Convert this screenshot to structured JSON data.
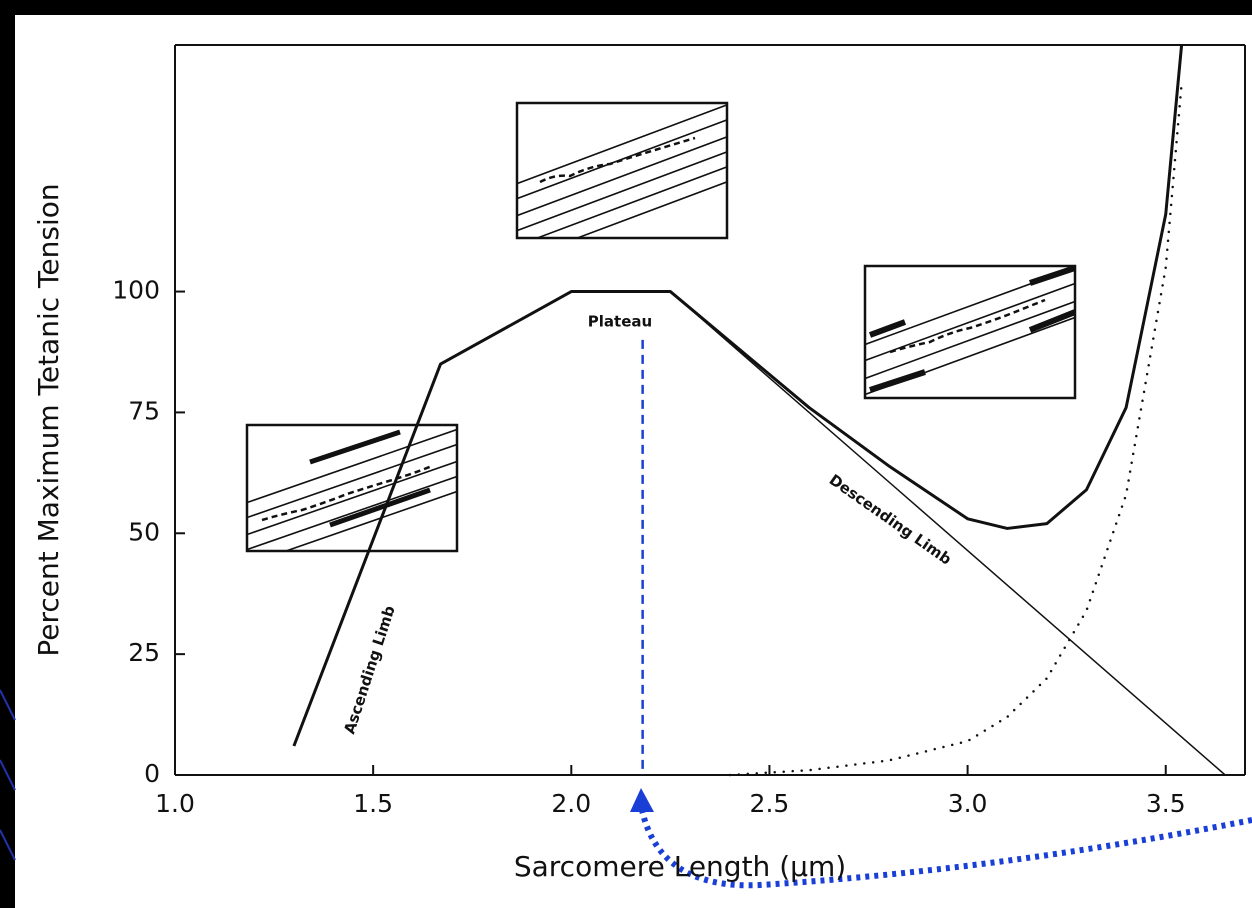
{
  "chart_data": {
    "type": "line",
    "xlabel": "Sarcomere Length (μm)",
    "ylabel": "Percent Maximum Tetanic Tension",
    "xlim": [
      1.0,
      3.7
    ],
    "ylim": [
      0,
      151
    ],
    "xticks": [
      {
        "value": 1,
        "label": "1.0"
      },
      1.5,
      {
        "value": 2,
        "label": "2.0"
      },
      2.5,
      {
        "value": 3,
        "label": "3.0"
      },
      3.5
    ],
    "yticks": [
      0,
      25,
      50,
      75,
      100
    ],
    "series": [
      {
        "color": "#111111",
        "width": 3,
        "style": "solid",
        "x": [
          1.3,
          1.67,
          2.0,
          2.25,
          2.6,
          2.8,
          3.0,
          3.1,
          3.2,
          3.3,
          3.4,
          3.5,
          3.54
        ],
        "values": [
          6,
          85,
          100,
          100,
          76,
          64,
          53,
          51,
          52,
          59,
          76,
          116,
          151
        ]
      },
      {
        "color": "#111111",
        "width": 1.5,
        "style": "solid",
        "x": [
          2.25,
          3.65
        ],
        "values": [
          100,
          0
        ]
      },
      {
        "color": "#111111",
        "width": 2.5,
        "style": "dotted",
        "x": [
          2.4,
          2.6,
          2.8,
          3.0,
          3.1,
          3.2,
          3.3,
          3.4,
          3.5,
          3.54
        ],
        "values": [
          0,
          1,
          3,
          7,
          12,
          20,
          34,
          58,
          105,
          143
        ]
      }
    ],
    "reference_line": {
      "x": 2.18,
      "y": 90,
      "color": "#1a3fd6"
    },
    "annotations": [
      "Plateau",
      "Ascending Limb",
      "Descending Limb"
    ]
  }
}
